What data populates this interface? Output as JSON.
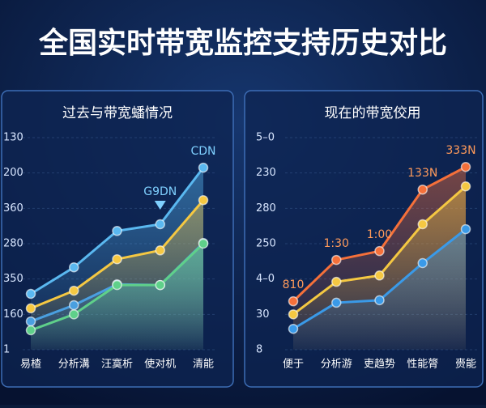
{
  "title": "全国实时带宽监控支持历史对比",
  "chart_data": [
    {
      "type": "line",
      "title": "过去与带宽蟠情况",
      "categories": [
        "易楂",
        "分析溝",
        "汪寞析",
        "使对机",
        "清能"
      ],
      "ylim": [
        0,
        6
      ],
      "yticks": [
        {
          "value": 0,
          "label": "1"
        },
        {
          "value": 1,
          "label": "160"
        },
        {
          "value": 2,
          "label": "350"
        },
        {
          "value": 3,
          "label": "280"
        },
        {
          "value": 4,
          "label": "360"
        },
        {
          "value": 5,
          "label": "200"
        },
        {
          "value": 6,
          "label": "130"
        }
      ],
      "grid": true,
      "series": [
        {
          "color": "#5ab8f0",
          "values": [
            1.58,
            2.33,
            3.36,
            3.55,
            5.15
          ]
        },
        {
          "color": "#f5c842",
          "values": [
            1.17,
            1.67,
            2.56,
            2.81,
            4.23
          ]
        },
        {
          "color": "#4a9fe0",
          "values": [
            0.8,
            1.26,
            1.85,
            1.83,
            3.02
          ]
        },
        {
          "color": "#5fd08a",
          "values": [
            0.55,
            1.0,
            1.83,
            1.83,
            3.0
          ]
        }
      ],
      "annotations": [
        "CDN",
        "G9DN"
      ]
    },
    {
      "type": "line",
      "title": "现在的带宽佼用",
      "categories": [
        "便于",
        "分析游",
        "吏趋势",
        "性能膂",
        "赍能"
      ],
      "ylim": [
        0,
        6
      ],
      "yticks": [
        {
          "value": 0,
          "label": "8"
        },
        {
          "value": 1,
          "label": "30"
        },
        {
          "value": 2,
          "label": "4–0"
        },
        {
          "value": 3,
          "label": "250"
        },
        {
          "value": 4,
          "label": "280"
        },
        {
          "value": 5,
          "label": "230"
        },
        {
          "value": 6,
          "label": "5–0"
        }
      ],
      "grid": true,
      "series": [
        {
          "color": "#f5703a",
          "values": [
            1.37,
            2.54,
            2.79,
            4.53,
            5.17
          ]
        },
        {
          "color": "#f5c842",
          "values": [
            1.0,
            1.92,
            2.1,
            3.55,
            4.62
          ]
        },
        {
          "color": "#3a9ae8",
          "values": [
            0.59,
            1.33,
            1.4,
            2.45,
            3.41
          ]
        }
      ],
      "annotations": [
        "810",
        "1:30",
        "1:00",
        "133N",
        "333N"
      ]
    }
  ]
}
